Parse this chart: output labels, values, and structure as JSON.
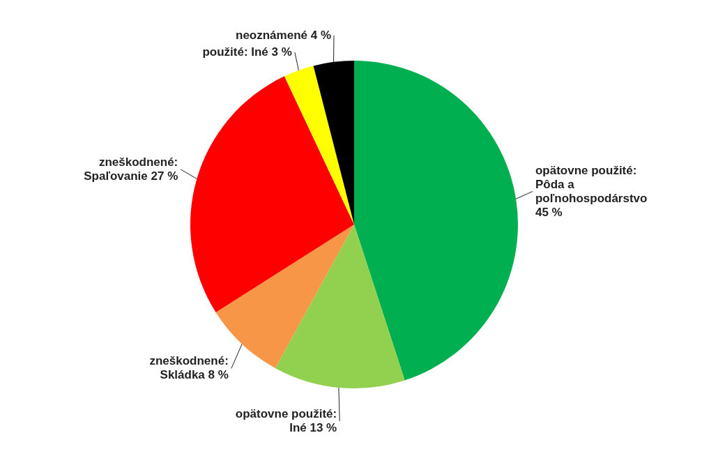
{
  "chart_data": {
    "type": "pie",
    "categories": [
      "opätovne použité: Pôda a poľnohospodárstvo",
      "opätovne použité: Iné",
      "zneškodnené: Skládka",
      "zneškodnené: Spaľovanie",
      "použité: Iné",
      "neoznámené"
    ],
    "values": [
      45,
      13,
      8,
      27,
      3,
      4
    ],
    "value_labels": [
      "45 %",
      "13 %",
      "8 %",
      "27 %",
      "3 %",
      "4 %"
    ],
    "colors": [
      "#00b050",
      "#92d050",
      "#f79646",
      "#ff0000",
      "#ffff00",
      "#000000"
    ]
  }
}
